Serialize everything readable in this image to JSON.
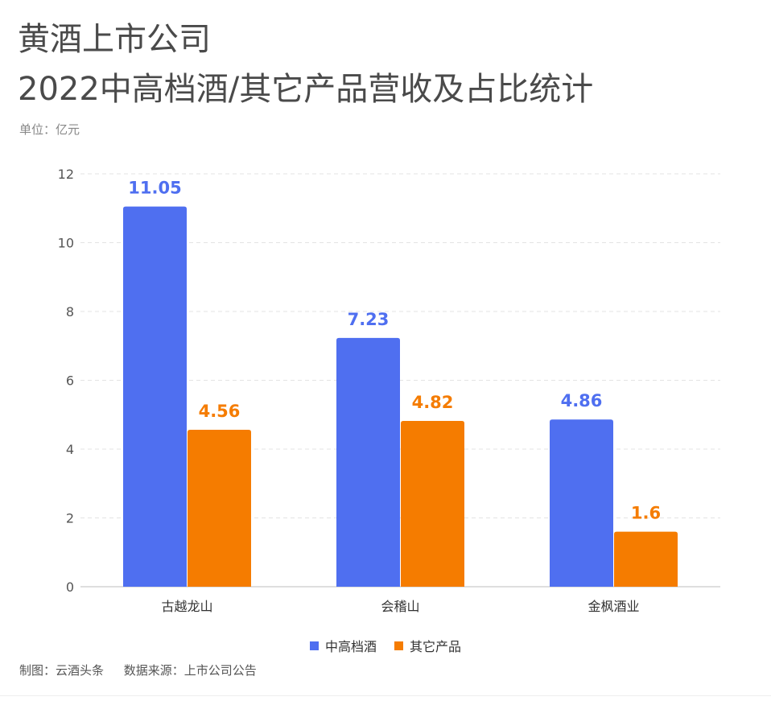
{
  "title_line1": "黄酒上市公司",
  "title_line2": "2022中高档酒/其它产品营收及占比统计",
  "unit_label": "单位：亿元",
  "footer": {
    "maker": "制图：云酒头条",
    "source": "数据来源：上市公司公告"
  },
  "chart_data": {
    "type": "bar",
    "categories": [
      "古越龙山",
      "会稽山",
      "金枫酒业"
    ],
    "series": [
      {
        "name": "中高档酒",
        "values": [
          11.05,
          7.23,
          4.86
        ],
        "color": "#4f6ff0"
      },
      {
        "name": "其它产品",
        "values": [
          4.56,
          4.82,
          1.6
        ],
        "color": "#f57c00"
      }
    ],
    "ylim": [
      0,
      12
    ],
    "yticks": [
      0,
      2,
      4,
      6,
      8,
      10,
      12
    ],
    "grid": true,
    "legend_position": "bottom-center"
  }
}
